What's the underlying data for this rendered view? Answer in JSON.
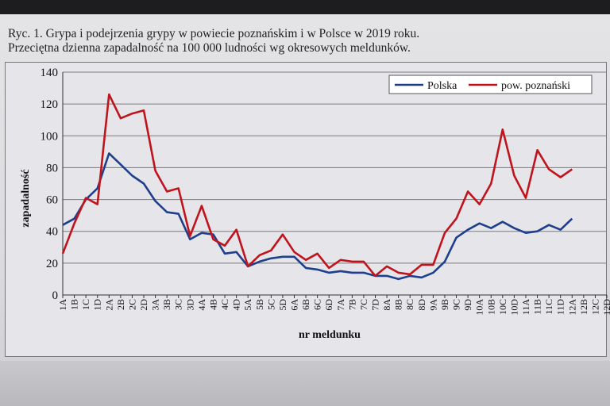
{
  "caption": {
    "line1": "Ryc. 1. Grypa i podejrzenia grypy w powiecie poznańskim i w Polsce w 2019 roku.",
    "line2": "Przeciętna dzienna zapadalność na 100 000 ludności wg okresowych meldunków."
  },
  "chart_data": {
    "type": "line",
    "xlabel": "nr meldunku",
    "ylabel": "zapadalność",
    "ylim": [
      0,
      140
    ],
    "yticks": [
      "0",
      "20",
      "40",
      "60",
      "80",
      "100",
      "120",
      "140"
    ],
    "grid": true,
    "legend_position": "top-right",
    "categories": [
      "1A",
      "1B",
      "1C",
      "1D",
      "2A",
      "2B",
      "2C",
      "2D",
      "3A",
      "3B",
      "3C",
      "3D",
      "4A",
      "4B",
      "4C",
      "4D",
      "5A",
      "5B",
      "5C",
      "5D",
      "6A",
      "6B",
      "6C",
      "6D",
      "7A",
      "7B",
      "7C",
      "7D",
      "8A",
      "8B",
      "8C",
      "8D",
      "9A",
      "9B",
      "9C",
      "9D",
      "10A",
      "10B",
      "10C",
      "10D",
      "11A",
      "11B",
      "11C",
      "11D",
      "12A",
      "12B",
      "12C",
      "12D"
    ],
    "series": [
      {
        "name": "Polska",
        "color": "#1f3f8c",
        "values": [
          44,
          48,
          60,
          67,
          89,
          82,
          75,
          70,
          59,
          52,
          51,
          35,
          39,
          38,
          26,
          27,
          18,
          21,
          23,
          24,
          24,
          17,
          16,
          14,
          15,
          14,
          14,
          12,
          12,
          10,
          12,
          11,
          14,
          21,
          36,
          41,
          45,
          42,
          46,
          42,
          39,
          40,
          44,
          41,
          48,
          null,
          null,
          null
        ]
      },
      {
        "name": "pow. poznański",
        "color": "#c0141c",
        "values": [
          26,
          45,
          61,
          57,
          126,
          111,
          114,
          116,
          78,
          65,
          67,
          37,
          56,
          35,
          31,
          41,
          18,
          25,
          28,
          38,
          27,
          22,
          26,
          17,
          22,
          21,
          21,
          12,
          18,
          14,
          13,
          19,
          19,
          39,
          48,
          65,
          57,
          70,
          104,
          75,
          61,
          91,
          79,
          74,
          79,
          null,
          null,
          null
        ]
      }
    ]
  }
}
